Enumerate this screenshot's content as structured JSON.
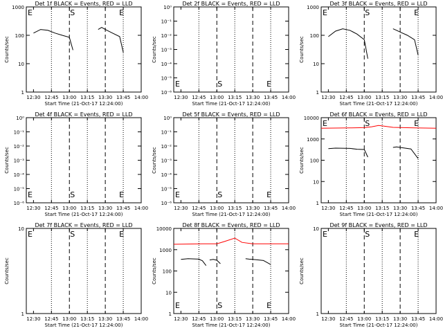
{
  "ylabel": "Counts/sec",
  "xlabel": "Start Time (21-Oct-17 12:24:00)",
  "time_ticks": [
    "12:30",
    "12:45",
    "13:00",
    "13:15",
    "13:30",
    "13:45",
    "14:00"
  ],
  "markers": {
    "left_E": "E",
    "S": "S",
    "right_E": "E"
  },
  "colors": {
    "events": "#000000",
    "lld": "#ff0000"
  },
  "chart_data": [
    {
      "type": "line",
      "title": "Det 1f BLACK = Events, RED = LLD",
      "yscale": "log",
      "ylim": [
        1,
        1000
      ],
      "yticks": [
        "1",
        "10",
        "100",
        "1000"
      ],
      "series": [
        {
          "name": "Events",
          "color": "#000000",
          "points": [
            [
              12.5,
              120
            ],
            [
              12.6,
              160
            ],
            [
              12.7,
              150
            ],
            [
              12.8,
              120
            ],
            [
              12.9,
              100
            ],
            [
              13.0,
              85
            ],
            [
              13.05,
              30
            ]
          ]
        },
        {
          "name": "Events",
          "color": "#000000",
          "points": [
            [
              13.4,
              160
            ],
            [
              13.45,
              190
            ],
            [
              13.5,
              160
            ],
            [
              13.6,
              120
            ],
            [
              13.7,
              90
            ],
            [
              13.75,
              25
            ]
          ]
        }
      ]
    },
    {
      "type": "line",
      "title": "Det 2f BLACK = Events, RED = LLD",
      "yscale": "log",
      "ylim": [
        1,
        1e-06
      ],
      "yticks": [
        "10⁻⁶",
        "10⁻⁵",
        "10⁻⁴",
        "10⁻³",
        "10⁻²",
        "10⁻¹",
        "10⁰"
      ],
      "series": []
    },
    {
      "type": "line",
      "title": "Det 3f BLACK = Events, RED = LLD",
      "yscale": "log",
      "ylim": [
        1,
        1000
      ],
      "yticks": [
        "1",
        "10",
        "100",
        "1000"
      ],
      "series": [
        {
          "name": "Events",
          "color": "#000000",
          "points": [
            [
              12.5,
              90
            ],
            [
              12.6,
              140
            ],
            [
              12.7,
              170
            ],
            [
              12.8,
              150
            ],
            [
              12.9,
              110
            ],
            [
              13.0,
              70
            ],
            [
              13.05,
              15
            ]
          ]
        },
        {
          "name": "Events",
          "color": "#000000",
          "points": [
            [
              13.4,
              170
            ],
            [
              13.45,
              150
            ],
            [
              13.5,
              130
            ],
            [
              13.6,
              100
            ],
            [
              13.7,
              70
            ],
            [
              13.75,
              20
            ]
          ]
        }
      ]
    },
    {
      "type": "line",
      "title": "Det 4f BLACK = Events, RED = LLD",
      "yscale": "log",
      "ylim": [
        1,
        1e-06
      ],
      "yticks": [
        "10⁻⁶",
        "10⁻⁵",
        "10⁻⁴",
        "10⁻³",
        "10⁻²",
        "10⁻¹",
        "10⁰"
      ],
      "series": []
    },
    {
      "type": "line",
      "title": "Det 5f BLACK = Events, RED = LLD",
      "yscale": "log",
      "ylim": [
        1,
        1e-06
      ],
      "yticks": [
        "10⁻⁶",
        "10⁻⁵",
        "10⁻⁴",
        "10⁻³",
        "10⁻²",
        "10⁻¹",
        "10⁰"
      ],
      "series": []
    },
    {
      "type": "line",
      "title": "Det 6f BLACK = Events, RED = LLD",
      "yscale": "log",
      "ylim": [
        1,
        10000
      ],
      "yticks": [
        "1",
        "10",
        "100",
        "1000",
        "10000"
      ],
      "series": [
        {
          "name": "LLD",
          "color": "#ff0000",
          "points": [
            [
              12.4,
              3200
            ],
            [
              12.8,
              3300
            ],
            [
              13.0,
              3400
            ],
            [
              13.1,
              3700
            ],
            [
              13.2,
              4300
            ],
            [
              13.25,
              4100
            ],
            [
              13.4,
              3500
            ],
            [
              13.7,
              3300
            ],
            [
              14.0,
              3200
            ]
          ]
        },
        {
          "name": "Events",
          "color": "#000000",
          "points": [
            [
              12.5,
              350
            ],
            [
              12.6,
              370
            ],
            [
              12.8,
              360
            ],
            [
              12.9,
              330
            ],
            [
              13.0,
              320
            ],
            [
              13.05,
              140
            ]
          ]
        },
        {
          "name": "Events",
          "color": "#000000",
          "points": [
            [
              13.4,
              400
            ],
            [
              13.45,
              420
            ],
            [
              13.55,
              380
            ],
            [
              13.65,
              340
            ],
            [
              13.75,
              120
            ]
          ]
        }
      ]
    },
    {
      "type": "line",
      "title": "Det 7f BLACK = Events, RED = LLD",
      "yscale": "log",
      "ylim": [
        1,
        10
      ],
      "yticks": [
        "1",
        "10"
      ],
      "series": []
    },
    {
      "type": "line",
      "title": "Det 8f BLACK = Events, RED = LLD",
      "yscale": "log",
      "ylim": [
        1,
        10000
      ],
      "yticks": [
        "1",
        "10",
        "100",
        "1000",
        "10000"
      ],
      "series": [
        {
          "name": "LLD",
          "color": "#ff0000",
          "points": [
            [
              12.4,
              1800
            ],
            [
              12.8,
              1900
            ],
            [
              13.0,
              1900
            ],
            [
              13.1,
              2400
            ],
            [
              13.25,
              3500
            ],
            [
              13.35,
              2200
            ],
            [
              13.5,
              1900
            ],
            [
              13.7,
              1900
            ],
            [
              14.0,
              1900
            ]
          ]
        },
        {
          "name": "Events",
          "color": "#000000",
          "points": [
            [
              12.5,
              350
            ],
            [
              12.6,
              380
            ],
            [
              12.75,
              360
            ],
            [
              12.8,
              300
            ],
            [
              12.85,
              180
            ]
          ]
        },
        {
          "name": "Events",
          "color": "#000000",
          "points": [
            [
              12.9,
              330
            ],
            [
              12.95,
              350
            ],
            [
              13.0,
              320
            ],
            [
              13.05,
              220
            ]
          ]
        },
        {
          "name": "Events",
          "color": "#000000",
          "points": [
            [
              13.4,
              380
            ],
            [
              13.45,
              360
            ],
            [
              13.55,
              340
            ],
            [
              13.65,
              310
            ],
            [
              13.75,
              200
            ]
          ]
        }
      ]
    },
    {
      "type": "line",
      "title": "Det 9f BLACK = Events, RED = LLD",
      "yscale": "log",
      "ylim": [
        1,
        10
      ],
      "yticks": [
        "1",
        "10"
      ],
      "series": []
    }
  ]
}
